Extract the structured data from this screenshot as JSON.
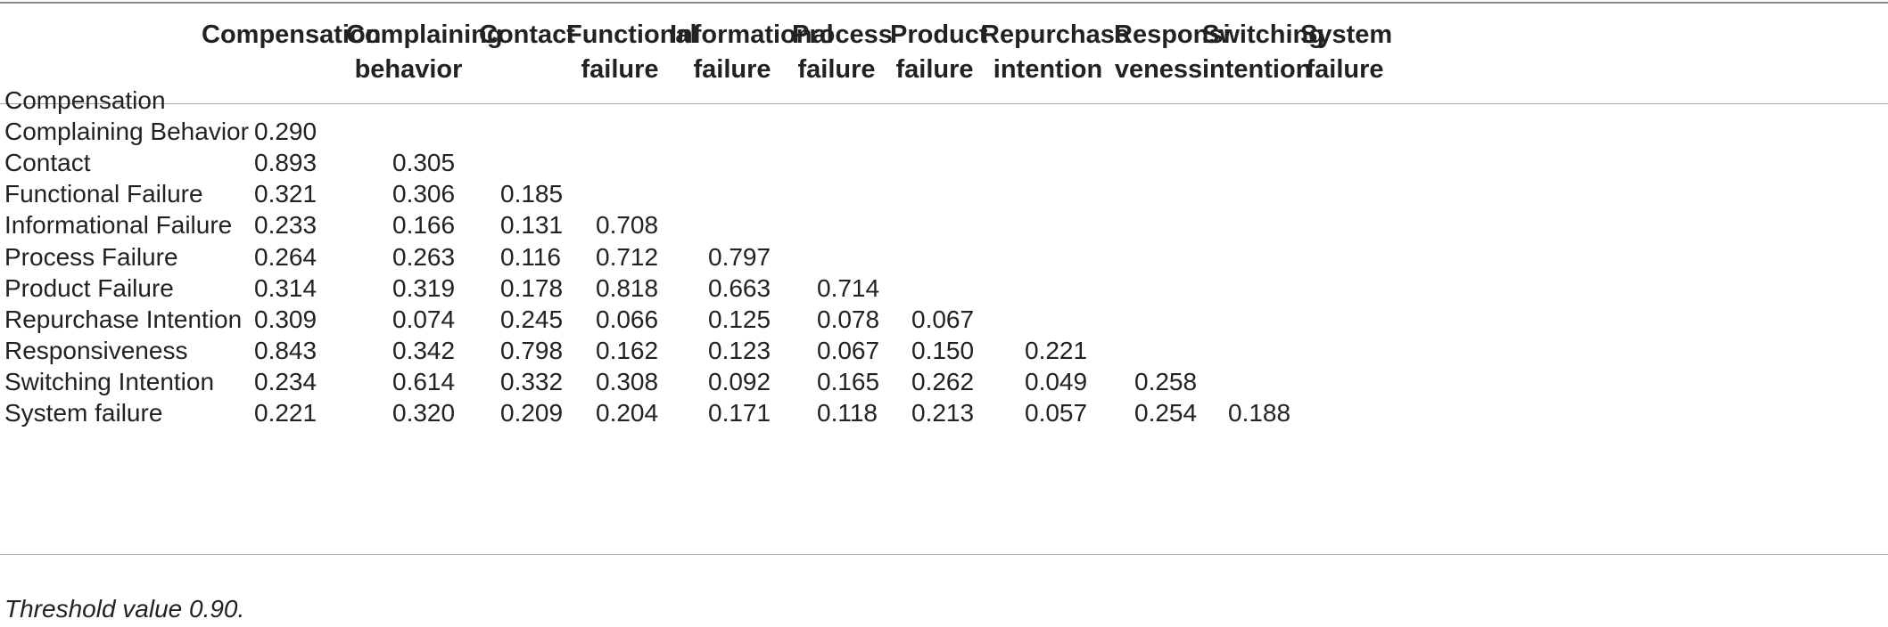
{
  "table": {
    "columns": [
      "Compensation",
      "Complaining behavior",
      "Contact",
      "Functional failure",
      "Informational failure",
      "Process failure",
      "Product failure",
      "Repurchase intention",
      "Responsi veness",
      "Switching intention",
      "System failure"
    ],
    "rows": [
      {
        "label": "Compensation",
        "values": []
      },
      {
        "label": "Complaining Behavior",
        "values": [
          "0.290"
        ]
      },
      {
        "label": "Contact",
        "values": [
          "0.893",
          "0.305"
        ]
      },
      {
        "label": "Functional Failure",
        "values": [
          "0.321",
          "0.306",
          "0.185"
        ]
      },
      {
        "label": "Informational Failure",
        "values": [
          "0.233",
          "0.166",
          "0.131",
          "0.708"
        ]
      },
      {
        "label": "Process Failure",
        "values": [
          "0.264",
          "0.263",
          "0.116",
          "0.712",
          "0.797"
        ]
      },
      {
        "label": "Product Failure",
        "values": [
          "0.314",
          "0.319",
          "0.178",
          "0.818",
          "0.663",
          "0.714"
        ]
      },
      {
        "label": "Repurchase Intention",
        "values": [
          "0.309",
          "0.074",
          "0.245",
          "0.066",
          "0.125",
          "0.078",
          "0.067"
        ]
      },
      {
        "label": "Responsiveness",
        "values": [
          "0.843",
          "0.342",
          "0.798",
          "0.162",
          "0.123",
          "0.067",
          "0.150",
          "0.221"
        ]
      },
      {
        "label": "Switching Intention",
        "values": [
          "0.234",
          "0.614",
          "0.332",
          "0.308",
          "0.092",
          "0.165",
          "0.262",
          "0.049",
          "0.258"
        ]
      },
      {
        "label": "System failure",
        "values": [
          "0.221",
          "0.320",
          "0.209",
          "0.204",
          "0.171",
          "0.118",
          "0.213",
          "0.057",
          "0.254",
          "0.188"
        ]
      }
    ],
    "footnote": "Threshold value 0.90."
  }
}
